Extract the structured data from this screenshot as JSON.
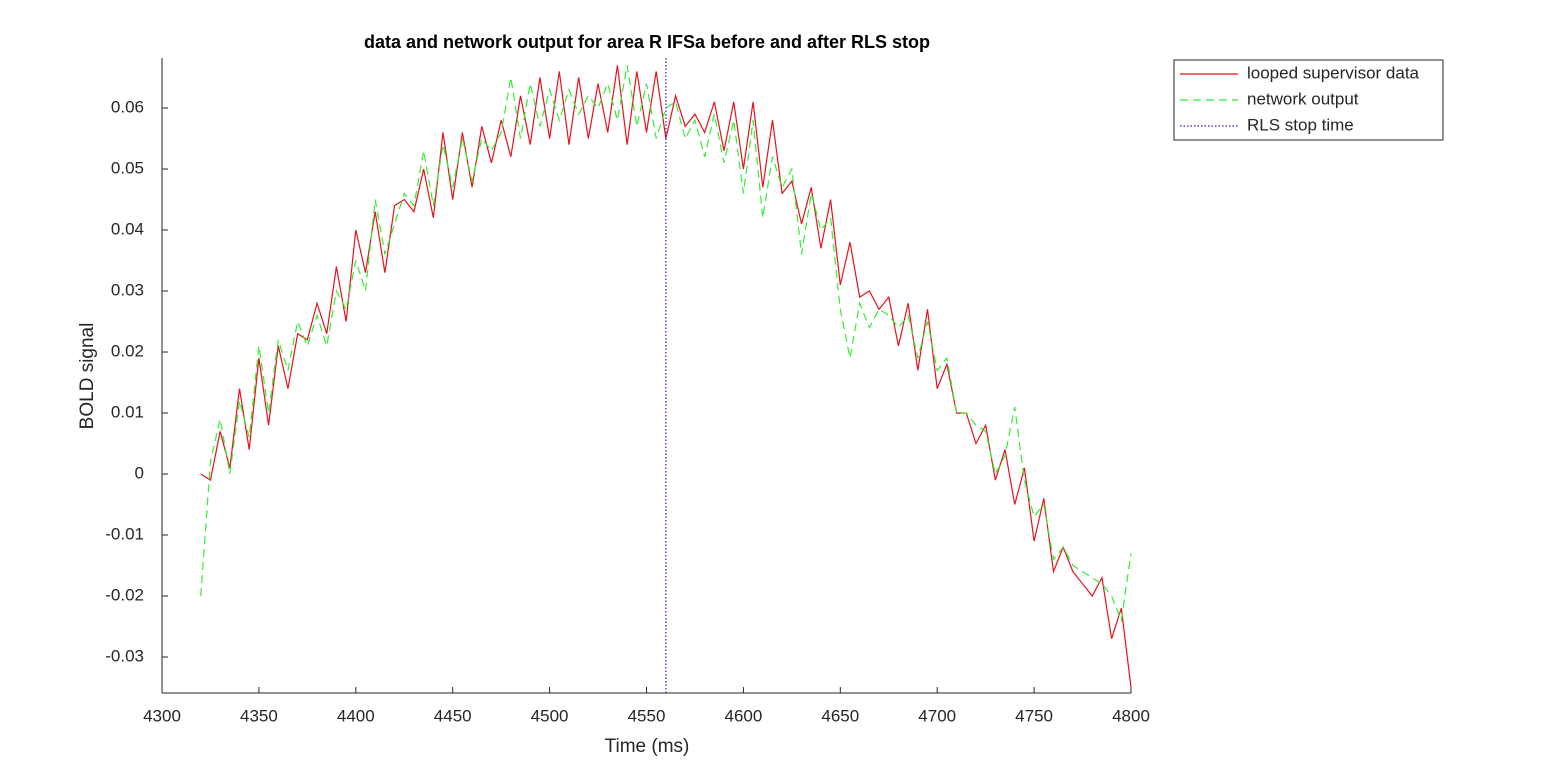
{
  "chart_data": {
    "type": "line",
    "title": "data and network output for area R IFSa before and after RLS stop",
    "xlabel": "Time (ms)",
    "ylabel": "BOLD signal",
    "xlim": [
      4300,
      4800
    ],
    "xticks": [
      4300,
      4350,
      4400,
      4450,
      4500,
      4550,
      4600,
      4650,
      4700,
      4750,
      4800
    ],
    "ylim": [
      -0.0359,
      0.0682
    ],
    "yticks": [
      -0.03,
      -0.02,
      -0.01,
      0,
      0.01,
      0.02,
      0.03,
      0.04,
      0.05,
      0.06
    ],
    "legend": "outside-top-right",
    "x": [
      4320,
      4325,
      4330,
      4335,
      4340,
      4345,
      4350,
      4355,
      4360,
      4365,
      4370,
      4375,
      4380,
      4385,
      4390,
      4395,
      4400,
      4405,
      4410,
      4415,
      4420,
      4425,
      4430,
      4435,
      4440,
      4445,
      4450,
      4455,
      4460,
      4465,
      4470,
      4475,
      4480,
      4485,
      4490,
      4495,
      4500,
      4505,
      4510,
      4515,
      4520,
      4525,
      4530,
      4535,
      4540,
      4545,
      4550,
      4555,
      4560,
      4565,
      4570,
      4575,
      4580,
      4585,
      4590,
      4595,
      4600,
      4605,
      4610,
      4615,
      4620,
      4625,
      4630,
      4635,
      4640,
      4645,
      4650,
      4655,
      4660,
      4665,
      4670,
      4675,
      4680,
      4685,
      4690,
      4695,
      4700,
      4705,
      4710,
      4715,
      4720,
      4725,
      4730,
      4735,
      4740,
      4745,
      4750,
      4755,
      4760,
      4765,
      4770,
      4775,
      4780,
      4785,
      4790,
      4795,
      4800
    ],
    "series": [
      {
        "name": "looped supervisor data",
        "color": "#e8111b",
        "style": "solid",
        "values": [
          0,
          -0.001,
          0.007,
          0.001,
          0.014,
          0.004,
          0.019,
          0.008,
          0.021,
          0.014,
          0.023,
          0.022,
          0.028,
          0.023,
          0.034,
          0.025,
          0.04,
          0.033,
          0.043,
          0.033,
          0.044,
          0.045,
          0.043,
          0.05,
          0.042,
          0.056,
          0.045,
          0.056,
          0.047,
          0.057,
          0.051,
          0.058,
          0.052,
          0.062,
          0.054,
          0.065,
          0.055,
          0.066,
          0.054,
          0.065,
          0.055,
          0.064,
          0.056,
          0.067,
          0.054,
          0.066,
          0.056,
          0.066,
          0.055,
          0.062,
          0.057,
          0.059,
          0.056,
          0.061,
          0.053,
          0.061,
          0.05,
          0.061,
          0.047,
          0.058,
          0.046,
          0.048,
          0.041,
          0.047,
          0.037,
          0.045,
          0.031,
          0.038,
          0.029,
          0.03,
          0.027,
          0.029,
          0.021,
          0.028,
          0.017,
          0.027,
          0.014,
          0.018,
          0.01,
          0.01,
          0.005,
          0.008,
          -0.001,
          0.004,
          -0.005,
          0.001,
          -0.011,
          -0.004,
          -0.016,
          -0.012,
          -0.016,
          -0.018,
          -0.02,
          -0.017,
          -0.027,
          -0.022,
          -0.035
        ]
      },
      {
        "name": "network output",
        "color": "#33ee33",
        "style": "dashed",
        "values": [
          -0.02,
          0.002,
          0.009,
          0,
          0.012,
          0.006,
          0.021,
          0.01,
          0.022,
          0.017,
          0.025,
          0.021,
          0.026,
          0.021,
          0.03,
          0.027,
          0.035,
          0.03,
          0.045,
          0.036,
          0.041,
          0.046,
          0.044,
          0.053,
          0.044,
          0.054,
          0.047,
          0.055,
          0.048,
          0.055,
          0.053,
          0.056,
          0.065,
          0.055,
          0.064,
          0.057,
          0.063,
          0.058,
          0.063,
          0.059,
          0.062,
          0.06,
          0.064,
          0.058,
          0.067,
          0.057,
          0.064,
          0.055,
          0.06,
          0.061,
          0.055,
          0.058,
          0.052,
          0.059,
          0.051,
          0.058,
          0.046,
          0.058,
          0.042,
          0.052,
          0.047,
          0.05,
          0.036,
          0.046,
          0.04,
          0.042,
          0.027,
          0.019,
          0.028,
          0.024,
          0.027,
          0.026,
          0.024,
          0.026,
          0.019,
          0.025,
          0.017,
          0.019,
          0.01,
          0.01,
          0.008,
          0.007,
          0,
          0.003,
          0.011,
          -0.001,
          -0.007,
          -0.005,
          -0.014,
          -0.012,
          -0.015,
          -0.016,
          -0.017,
          -0.018,
          -0.02,
          -0.024,
          -0.013
        ]
      },
      {
        "name": "RLS stop time",
        "color": "#2222cc",
        "style": "dotted",
        "at": 4560
      }
    ]
  }
}
